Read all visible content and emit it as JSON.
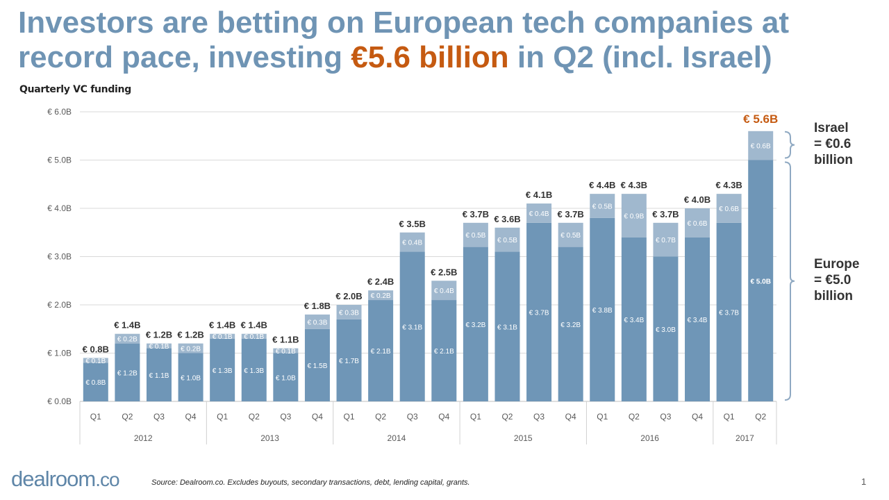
{
  "title": {
    "pre": "Investors are betting on European tech companies at record pace, investing ",
    "highlight": "€5.6 billion",
    "post": " in Q2 (incl. Israel)"
  },
  "colors": {
    "europe": "#6f96b7",
    "israel": "#a0b8ce",
    "title": "#6f94b4",
    "highlight": "#c55a11"
  },
  "footer": {
    "logo": "dealroom",
    "logo_suffix": ".co",
    "source": "Source: Dealroom.co. Excludes buyouts, secondary transactions, debt, lending capital, grants.",
    "page": "1"
  },
  "annotations": {
    "israel": [
      "Israel",
      "= €0.6",
      "billion"
    ],
    "europe": [
      "Europe",
      "= €5.0",
      "billion"
    ]
  },
  "chart_data": {
    "type": "bar",
    "stacked": true,
    "title": "Quarterly VC funding",
    "ylim": [
      0,
      6
    ],
    "yticks": [
      "€ 0.0B",
      "€ 1.0B",
      "€ 2.0B",
      "€ 3.0B",
      "€ 4.0B",
      "€ 5.0B",
      "€ 6.0B"
    ],
    "grid": true,
    "categories": [
      "Q1",
      "Q2",
      "Q3",
      "Q4",
      "Q1",
      "Q2",
      "Q3",
      "Q4",
      "Q1",
      "Q2",
      "Q3",
      "Q4",
      "Q1",
      "Q2",
      "Q3",
      "Q4",
      "Q1",
      "Q2",
      "Q3",
      "Q4",
      "Q1",
      "Q2"
    ],
    "years": [
      {
        "label": "2012",
        "count": 4
      },
      {
        "label": "2013",
        "count": 4
      },
      {
        "label": "2014",
        "count": 4
      },
      {
        "label": "2015",
        "count": 4
      },
      {
        "label": "2016",
        "count": 4
      },
      {
        "label": "2017",
        "count": 2
      }
    ],
    "series": [
      {
        "key": "europe",
        "values": [
          0.8,
          1.2,
          1.1,
          1.0,
          1.3,
          1.3,
          1.0,
          1.5,
          1.7,
          2.1,
          3.1,
          2.1,
          3.2,
          3.1,
          3.7,
          3.2,
          3.8,
          3.4,
          3.0,
          3.4,
          3.7,
          5.0
        ]
      },
      {
        "key": "israel",
        "values": [
          0.1,
          0.2,
          0.1,
          0.2,
          0.1,
          0.1,
          0.1,
          0.3,
          0.3,
          0.2,
          0.4,
          0.4,
          0.5,
          0.5,
          0.4,
          0.5,
          0.5,
          0.9,
          0.7,
          0.6,
          0.6,
          0.6
        ]
      }
    ],
    "totals": [
      0.8,
      1.4,
      1.2,
      1.2,
      1.4,
      1.4,
      1.1,
      1.8,
      2.0,
      2.4,
      3.5,
      2.5,
      3.7,
      3.6,
      4.1,
      3.7,
      4.4,
      4.3,
      3.7,
      4.0,
      4.3,
      5.6
    ]
  }
}
